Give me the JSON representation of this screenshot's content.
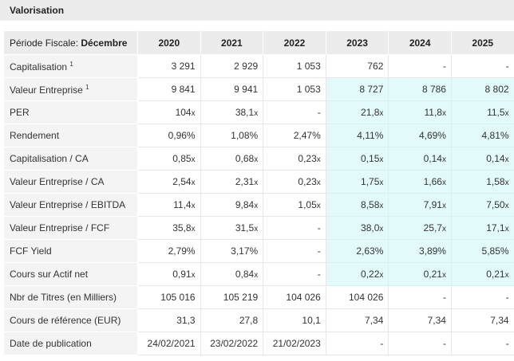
{
  "title": "Valorisation",
  "header": {
    "label_prefix": "Période Fiscale: ",
    "label_month": "Décembre",
    "years": [
      "2020",
      "2021",
      "2022",
      "2023",
      "2024",
      "2025"
    ]
  },
  "colors": {
    "header_bg": "#ececec",
    "label_bg": "#f4f4f4",
    "forecast_bg": "#e2fafa"
  },
  "rows": [
    {
      "label": "Capitalisation",
      "note": "1",
      "values": [
        "3 291",
        "2 929",
        "1 053",
        "762",
        "-",
        "-"
      ],
      "units": [
        "",
        "",
        "",
        "",
        "",
        ""
      ],
      "forecast": [
        false,
        false,
        false,
        false,
        false,
        false
      ]
    },
    {
      "label": "Valeur Entreprise",
      "note": "1",
      "values": [
        "9 841",
        "9 941",
        "1 053",
        "8 727",
        "8 786",
        "8 802"
      ],
      "units": [
        "",
        "",
        "",
        "",
        "",
        ""
      ],
      "forecast": [
        false,
        false,
        false,
        true,
        true,
        true
      ]
    },
    {
      "label": "PER",
      "note": "",
      "values": [
        "104",
        "38,1",
        "-",
        "21,8",
        "11,8",
        "11,5"
      ],
      "units": [
        "x",
        "x",
        "",
        "x",
        "x",
        "x"
      ],
      "forecast": [
        false,
        false,
        false,
        true,
        true,
        true
      ]
    },
    {
      "label": "Rendement",
      "note": "",
      "values": [
        "0,96%",
        "1,08%",
        "2,47%",
        "4,11%",
        "4,69%",
        "4,81%"
      ],
      "units": [
        "",
        "",
        "",
        "",
        "",
        ""
      ],
      "forecast": [
        false,
        false,
        false,
        true,
        true,
        true
      ]
    },
    {
      "label": "Capitalisation / CA",
      "note": "",
      "values": [
        "0,85",
        "0,68",
        "0,23",
        "0,15",
        "0,14",
        "0,14"
      ],
      "units": [
        "x",
        "x",
        "x",
        "x",
        "x",
        "x"
      ],
      "forecast": [
        false,
        false,
        false,
        true,
        true,
        true
      ]
    },
    {
      "label": "Valeur Entreprise / CA",
      "note": "",
      "values": [
        "2,54",
        "2,31",
        "0,23",
        "1,75",
        "1,66",
        "1,58"
      ],
      "units": [
        "x",
        "x",
        "x",
        "x",
        "x",
        "x"
      ],
      "forecast": [
        false,
        false,
        false,
        true,
        true,
        true
      ]
    },
    {
      "label": "Valeur Entreprise / EBITDA",
      "note": "",
      "values": [
        "11,4",
        "9,84",
        "1,05",
        "8,58",
        "7,91",
        "7,50"
      ],
      "units": [
        "x",
        "x",
        "x",
        "x",
        "x",
        "x"
      ],
      "forecast": [
        false,
        false,
        false,
        true,
        true,
        true
      ]
    },
    {
      "label": "Valeur Entreprise / FCF",
      "note": "",
      "values": [
        "35,8",
        "31,5",
        "-",
        "38,0",
        "25,7",
        "17,1"
      ],
      "units": [
        "x",
        "x",
        "",
        "x",
        "x",
        "x"
      ],
      "forecast": [
        false,
        false,
        false,
        true,
        true,
        true
      ]
    },
    {
      "label": "FCF Yield",
      "note": "",
      "values": [
        "2,79%",
        "3,17%",
        "-",
        "2,63%",
        "3,89%",
        "5,85%"
      ],
      "units": [
        "",
        "",
        "",
        "",
        "",
        ""
      ],
      "forecast": [
        false,
        false,
        false,
        true,
        true,
        true
      ]
    },
    {
      "label": "Cours sur Actif net",
      "note": "",
      "values": [
        "0,91",
        "0,84",
        "-",
        "0,22",
        "0,21",
        "0,21"
      ],
      "units": [
        "x",
        "x",
        "",
        "x",
        "x",
        "x"
      ],
      "forecast": [
        false,
        false,
        false,
        true,
        true,
        true
      ]
    },
    {
      "label": "Nbr de Titres (en Milliers)",
      "note": "",
      "values": [
        "105 016",
        "105 219",
        "104 026",
        "104 026",
        "-",
        "-"
      ],
      "units": [
        "",
        "",
        "",
        "",
        "",
        ""
      ],
      "forecast": [
        false,
        false,
        false,
        false,
        false,
        false
      ]
    },
    {
      "label": "Cours de référence (EUR)",
      "note": "",
      "values": [
        "31,3",
        "27,8",
        "10,1",
        "7,34",
        "7,34",
        "7,34"
      ],
      "units": [
        "",
        "",
        "",
        "",
        "",
        ""
      ],
      "forecast": [
        false,
        false,
        false,
        false,
        false,
        false
      ]
    },
    {
      "label": "Date de publication",
      "note": "",
      "values": [
        "24/02/2021",
        "23/02/2022",
        "21/02/2023",
        "-",
        "-",
        "-"
      ],
      "units": [
        "",
        "",
        "",
        "",
        "",
        ""
      ],
      "forecast": [
        false,
        false,
        false,
        false,
        false,
        false
      ]
    }
  ]
}
